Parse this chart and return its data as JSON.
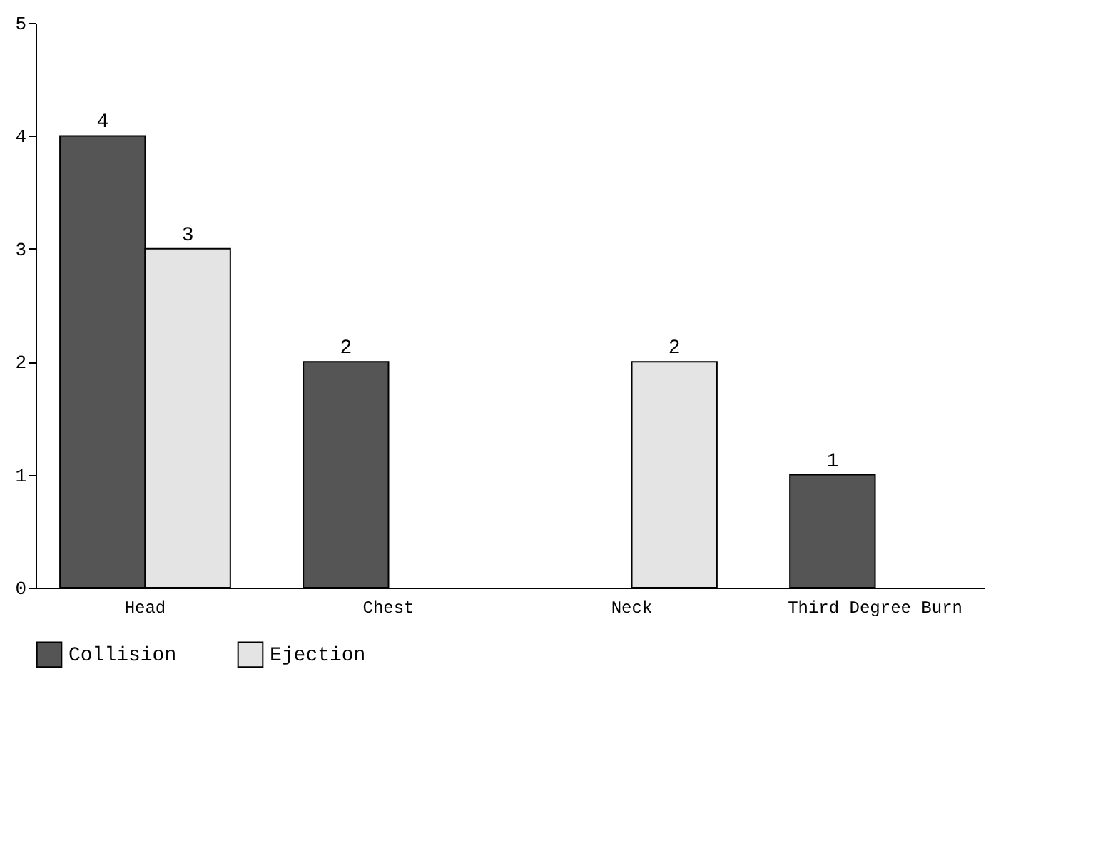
{
  "chart_data": {
    "type": "bar",
    "categories": [
      "Head",
      "Chest",
      "Neck",
      "Third Degree Burn"
    ],
    "series": [
      {
        "name": "Collision",
        "color": "#555555",
        "values": [
          4,
          2,
          null,
          1
        ]
      },
      {
        "name": "Ejection",
        "color": "#e4e4e4",
        "values": [
          3,
          null,
          2,
          null
        ]
      }
    ],
    "ylim": [
      0,
      5
    ],
    "yticks": [
      0,
      1,
      2,
      3,
      4,
      5
    ],
    "grid": false,
    "legend": "bottom",
    "data_labels": true
  }
}
